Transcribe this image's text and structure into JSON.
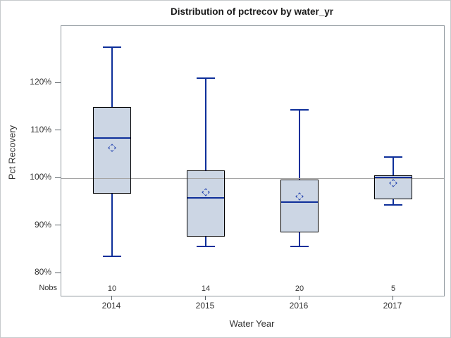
{
  "page": {
    "title": "Distribution of pctrecov by water_yr"
  },
  "chart_data": {
    "type": "box",
    "title": "Distribution of pctrecov by water_yr",
    "xlabel": "Water Year",
    "ylabel": "Pct Recovery",
    "categories": [
      "2014",
      "2015",
      "2016",
      "2017"
    ],
    "nobs_label": "Nobs",
    "nobs": [
      "10",
      "14",
      "20",
      "5"
    ],
    "yticks": [
      80,
      90,
      100,
      110,
      120
    ],
    "ytick_suffix": "%",
    "ylim": [
      75,
      132
    ],
    "reference_line": 100,
    "grid": false,
    "legend_position": "none",
    "series": [
      {
        "category": "2014",
        "nobs": 10,
        "whisker_low": 83.5,
        "q1": 96.7,
        "median": 108.5,
        "q3": 115.0,
        "whisker_high": 127.6,
        "mean": 106.3
      },
      {
        "category": "2015",
        "nobs": 14,
        "whisker_low": 85.7,
        "q1": 87.7,
        "median": 95.8,
        "q3": 101.6,
        "whisker_high": 121.1,
        "mean": 97.0
      },
      {
        "category": "2016",
        "nobs": 20,
        "whisker_low": 85.7,
        "q1": 88.6,
        "median": 94.9,
        "q3": 99.7,
        "whisker_high": 114.3,
        "mean": 96.2
      },
      {
        "category": "2017",
        "nobs": 5,
        "whisker_low": 94.4,
        "q1": 95.6,
        "median": 100.1,
        "q3": 100.6,
        "whisker_high": 104.5,
        "mean": 99.0
      }
    ],
    "colors": {
      "box_fill": "#ccd6e4",
      "box_border": "#000000",
      "whisker_line": "#0e2f9a",
      "median_line": "#0e2f9a",
      "mean_marker": "#1f3fae",
      "reference_line": "#a5a5a5",
      "plot_border": "#8f979d",
      "figure_border": "#c6cacc",
      "text": "#333333"
    }
  }
}
